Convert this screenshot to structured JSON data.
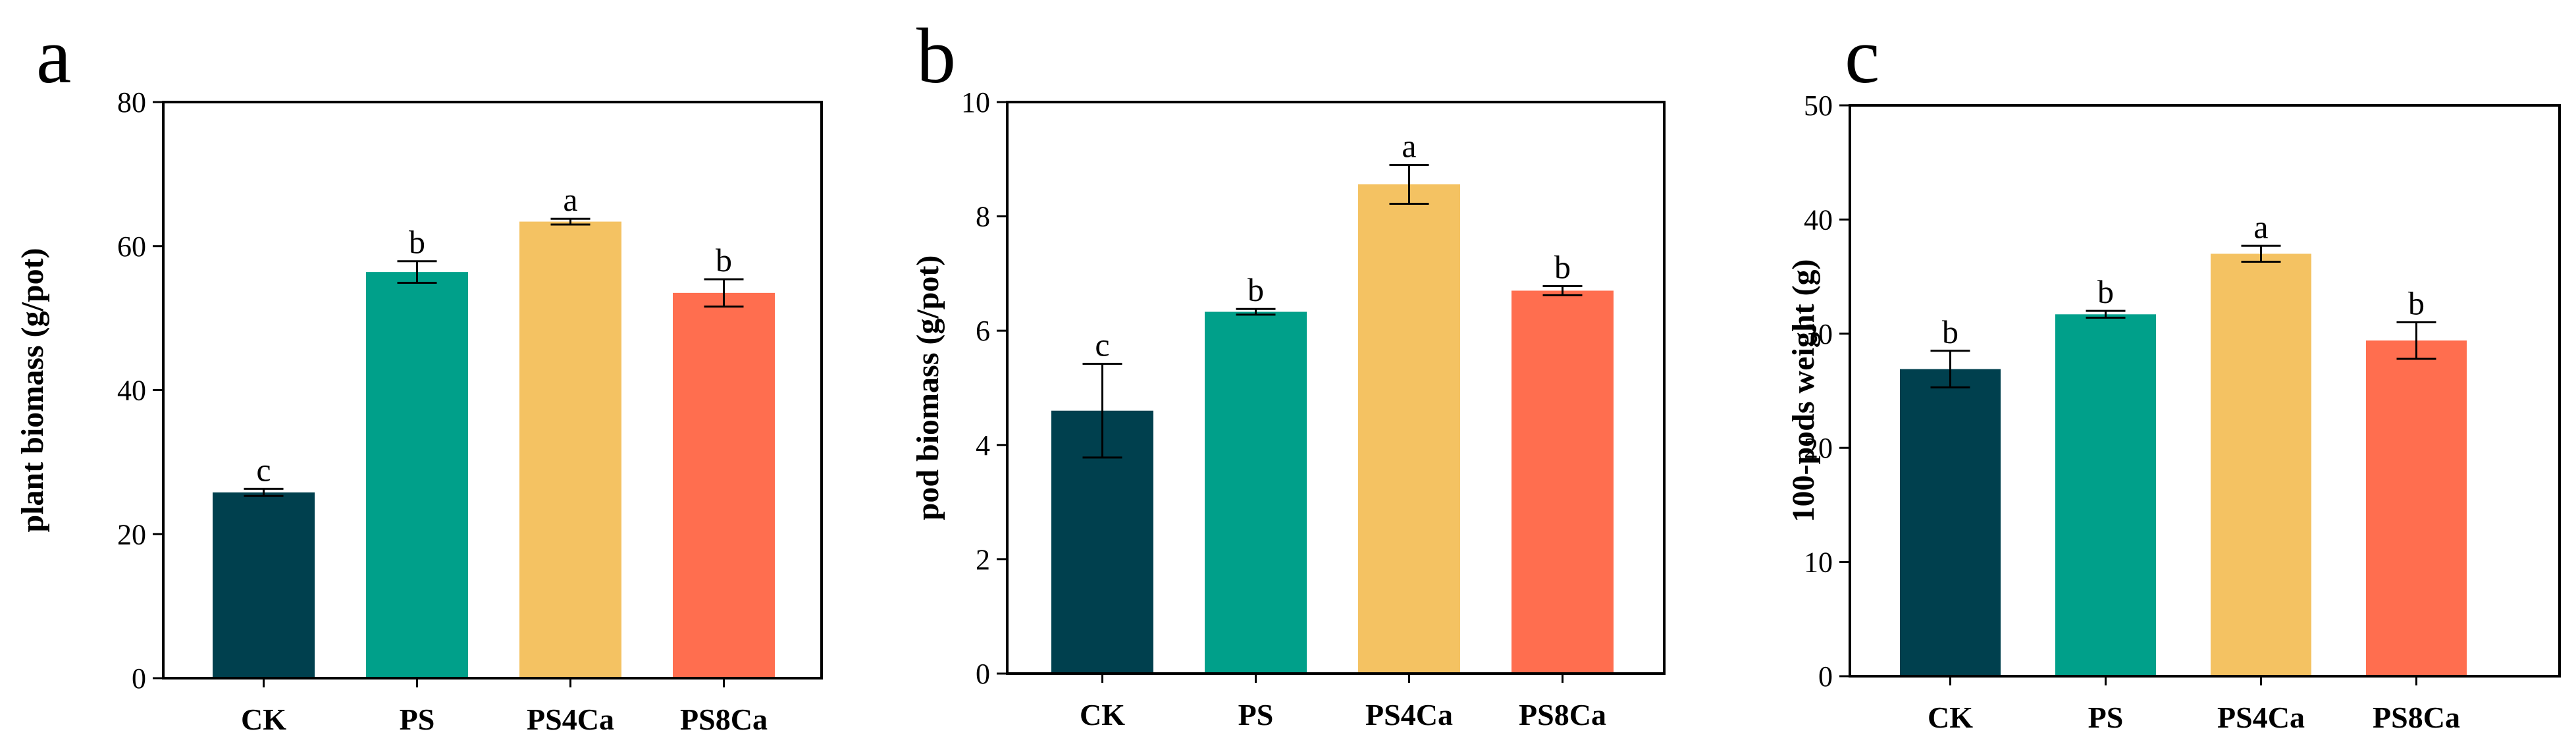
{
  "figure": {
    "colors": {
      "CK": "#00404e",
      "PS": "#00a08a",
      "PS4Ca": "#f4c262",
      "PS8Ca": "#ff6e4f",
      "axis": "#000000",
      "background": "#ffffff"
    }
  },
  "chart_data": [
    {
      "type": "bar",
      "panel_letter": "a",
      "title": "",
      "xlabel": "",
      "ylabel": "plant biomass (g/pot)",
      "ylim": [
        0,
        80
      ],
      "yticks": [
        0,
        20,
        40,
        60,
        80
      ],
      "categories": [
        "CK",
        "PS",
        "PS4Ca",
        "PS8Ca"
      ],
      "values": [
        25.8,
        56.4,
        63.4,
        53.5
      ],
      "errors": [
        0.5,
        1.5,
        0.4,
        1.9
      ],
      "significance": [
        "c",
        "b",
        "a",
        "b"
      ],
      "grid": false,
      "legend": "none"
    },
    {
      "type": "bar",
      "panel_letter": "b",
      "title": "",
      "xlabel": "",
      "ylabel": "pod biomass (g/pot)",
      "ylim": [
        0,
        10
      ],
      "yticks": [
        0,
        2,
        4,
        6,
        8,
        10
      ],
      "categories": [
        "CK",
        "PS",
        "PS4Ca",
        "PS8Ca"
      ],
      "values": [
        4.6,
        6.33,
        8.56,
        6.7
      ],
      "errors": [
        0.82,
        0.05,
        0.34,
        0.08
      ],
      "significance": [
        "c",
        "b",
        "a",
        "b"
      ],
      "grid": false,
      "legend": "none"
    },
    {
      "type": "bar",
      "panel_letter": "c",
      "title": "",
      "xlabel": "",
      "ylabel": "100-pods weight (g)",
      "ylim": [
        0,
        50
      ],
      "yticks": [
        0,
        10,
        20,
        30,
        40,
        50
      ],
      "categories": [
        "CK",
        "PS",
        "PS4Ca",
        "PS8Ca"
      ],
      "values": [
        26.9,
        31.7,
        37.0,
        29.4
      ],
      "errors": [
        1.6,
        0.3,
        0.7,
        1.6
      ],
      "significance": [
        "b",
        "b",
        "a",
        "b"
      ],
      "grid": false,
      "legend": "none"
    }
  ]
}
